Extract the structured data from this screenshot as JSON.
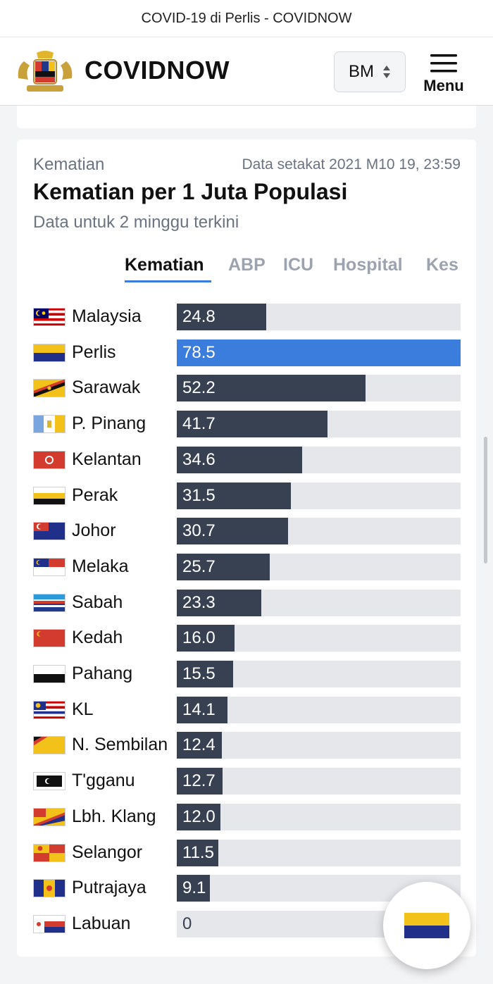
{
  "browser": {
    "title": "COVID-19 di Perlis - COVIDNOW"
  },
  "header": {
    "brand": "COVIDNOW",
    "language": "BM",
    "menu_label": "Menu"
  },
  "card": {
    "label": "Kematian",
    "updated": "Data setakat 2021 M10 19, 23:59",
    "title": "Kematian per 1 Juta Populasi",
    "subtitle": "Data untuk 2 minggu terkini",
    "tabs": [
      {
        "label": "Kematian",
        "active": true
      },
      {
        "label": "ABP",
        "active": false
      },
      {
        "label": "ICU",
        "active": false
      },
      {
        "label": "Hospital",
        "active": false
      },
      {
        "label": "Kes",
        "active": false
      }
    ]
  },
  "chart_data": {
    "type": "bar",
    "orientation": "horizontal",
    "title": "Kematian per 1 Juta Populasi",
    "subtitle": "Data untuk 2 minggu terkini",
    "xlim": [
      0,
      78.5
    ],
    "highlight": "Perlis",
    "colors": {
      "bar": "#374151",
      "highlight": "#3b7ddd",
      "track": "#e5e7eb"
    },
    "categories": [
      "Malaysia",
      "Perlis",
      "Sarawak",
      "P. Pinang",
      "Kelantan",
      "Perak",
      "Johor",
      "Melaka",
      "Sabah",
      "Kedah",
      "Pahang",
      "KL",
      "N. Sembilan",
      "T'gganu",
      "Lbh. Klang",
      "Selangor",
      "Putrajaya",
      "Labuan"
    ],
    "values": [
      24.8,
      78.5,
      52.2,
      41.7,
      34.6,
      31.5,
      30.7,
      25.7,
      23.3,
      16.0,
      15.5,
      14.1,
      12.4,
      12.7,
      12.0,
      11.5,
      9.1,
      0
    ],
    "value_labels": [
      "24.8",
      "78.5",
      "52.2",
      "41.7",
      "34.6",
      "31.5",
      "30.7",
      "25.7",
      "23.3",
      "16.0",
      "15.5",
      "14.1",
      "12.4",
      "12.7",
      "12.0",
      "11.5",
      "9.1",
      "0"
    ],
    "flags": [
      "malaysia-flag-icon",
      "perlis-flag-icon",
      "sarawak-flag-icon",
      "penang-flag-icon",
      "kelantan-flag-icon",
      "perak-flag-icon",
      "johor-flag-icon",
      "melaka-flag-icon",
      "sabah-flag-icon",
      "kedah-flag-icon",
      "pahang-flag-icon",
      "kl-flag-icon",
      "negeri-sembilan-flag-icon",
      "terengganu-flag-icon",
      "labuan-klang-flag-icon",
      "selangor-flag-icon",
      "putrajaya-flag-icon",
      "labuan-flag-icon"
    ]
  },
  "fab": {
    "icon": "perlis-flag-icon"
  }
}
